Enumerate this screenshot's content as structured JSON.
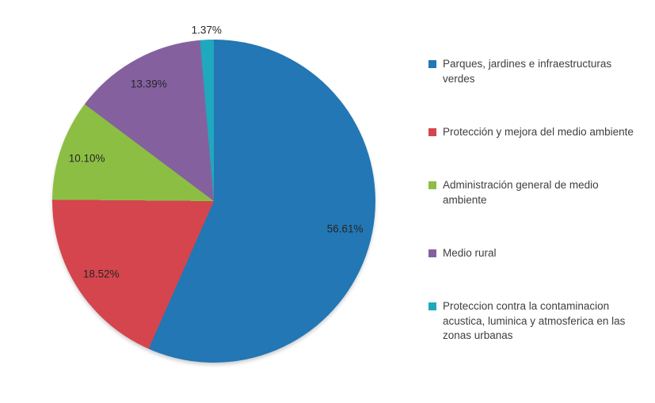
{
  "chart_data": {
    "type": "pie",
    "title": "",
    "legend_position": "right",
    "start_angle_deg": 0,
    "direction": "clockwise",
    "slices": [
      {
        "label": "Parques, jardines e infraestructuras verdes",
        "value": 56.61,
        "display": "56.61%",
        "color": "#2277b4",
        "label_placement": "inside"
      },
      {
        "label": "Protección y mejora del medio ambiente",
        "value": 18.52,
        "display": "18.52%",
        "color": "#d5454d",
        "label_placement": "inside"
      },
      {
        "label": "Administración general de medio ambiente",
        "value": 10.1,
        "display": "10.10%",
        "color": "#8dbe44",
        "label_placement": "inside"
      },
      {
        "label": "Medio rural",
        "value": 13.39,
        "display": "13.39%",
        "color": "#85609f",
        "label_placement": "inside"
      },
      {
        "label": "Proteccion contra la contaminacion acustica, luminica y atmosferica en las zonas urbanas",
        "value": 1.37,
        "display": "1.37%",
        "color": "#20a8be",
        "label_placement": "outside"
      }
    ]
  }
}
